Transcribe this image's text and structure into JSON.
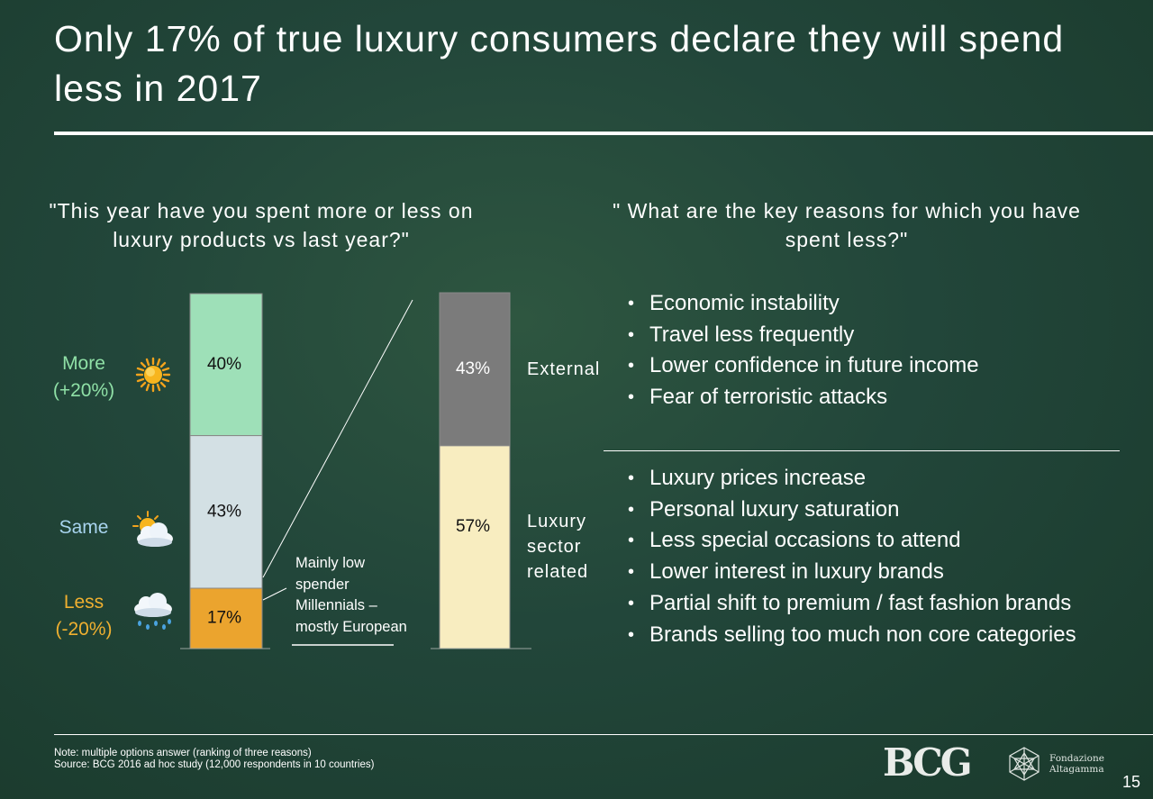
{
  "title": "Only 17% of true luxury consumers declare they will spend less in 2017",
  "question_left": "\"This year have you spent more or less on luxury products vs last year?\"",
  "question_right": "\" What are the key reasons for which you have spent less?\"",
  "legend": {
    "more": [
      "More",
      "(+20%)"
    ],
    "same": "Same",
    "less": [
      "Less",
      "(-20%)"
    ],
    "more_icon": "sun-icon",
    "same_icon": "partly-cloudy-icon",
    "less_icon": "rain-cloud-icon"
  },
  "annotation": [
    "Mainly low",
    "spender",
    "Millennials –",
    "mostly European"
  ],
  "categories": {
    "external": "External",
    "luxury": [
      "Luxury",
      "sector",
      "related"
    ]
  },
  "reasons_external": [
    "Economic instability",
    "Travel less frequently",
    "Lower confidence in future income",
    "Fear of terroristic attacks"
  ],
  "reasons_luxury": [
    "Luxury prices increase",
    "Personal luxury saturation",
    "Less special occasions to attend",
    "Lower interest in luxury brands",
    "Partial shift to premium / fast fashion brands",
    "Brands selling too much non core categories"
  ],
  "footer": {
    "note": "Note: multiple options answer (ranking of three reasons)",
    "source": "Source: BCG 2016 ad hoc study (12,000 respondents in 10 countries)"
  },
  "logos": {
    "bcg": "BCG",
    "fondazione": [
      "Fondazione",
      "Altagamma"
    ]
  },
  "page_number": "15",
  "colors": {
    "more": "#9ee0b8",
    "same": "#d3e0e4",
    "less": "#eba42e",
    "external": "#7b7b7b",
    "luxury_sector": "#f8edc0",
    "more_text": "#8fe0a6",
    "same_text": "#a8d4ee",
    "less_text": "#f0b030"
  },
  "chart_data": [
    {
      "type": "bar",
      "stacked": true,
      "series": [
        {
          "name": "More",
          "values": [
            40
          ],
          "label": "40%"
        },
        {
          "name": "Same",
          "values": [
            43
          ],
          "label": "43%"
        },
        {
          "name": "Less",
          "values": [
            17
          ],
          "label": "17%"
        }
      ],
      "ylim": [
        0,
        100
      ]
    },
    {
      "type": "bar",
      "stacked": true,
      "series": [
        {
          "name": "External",
          "values": [
            43
          ],
          "label": "43%"
        },
        {
          "name": "Luxury sector related",
          "values": [
            57
          ],
          "label": "57%"
        }
      ],
      "ylim": [
        0,
        100
      ]
    }
  ]
}
